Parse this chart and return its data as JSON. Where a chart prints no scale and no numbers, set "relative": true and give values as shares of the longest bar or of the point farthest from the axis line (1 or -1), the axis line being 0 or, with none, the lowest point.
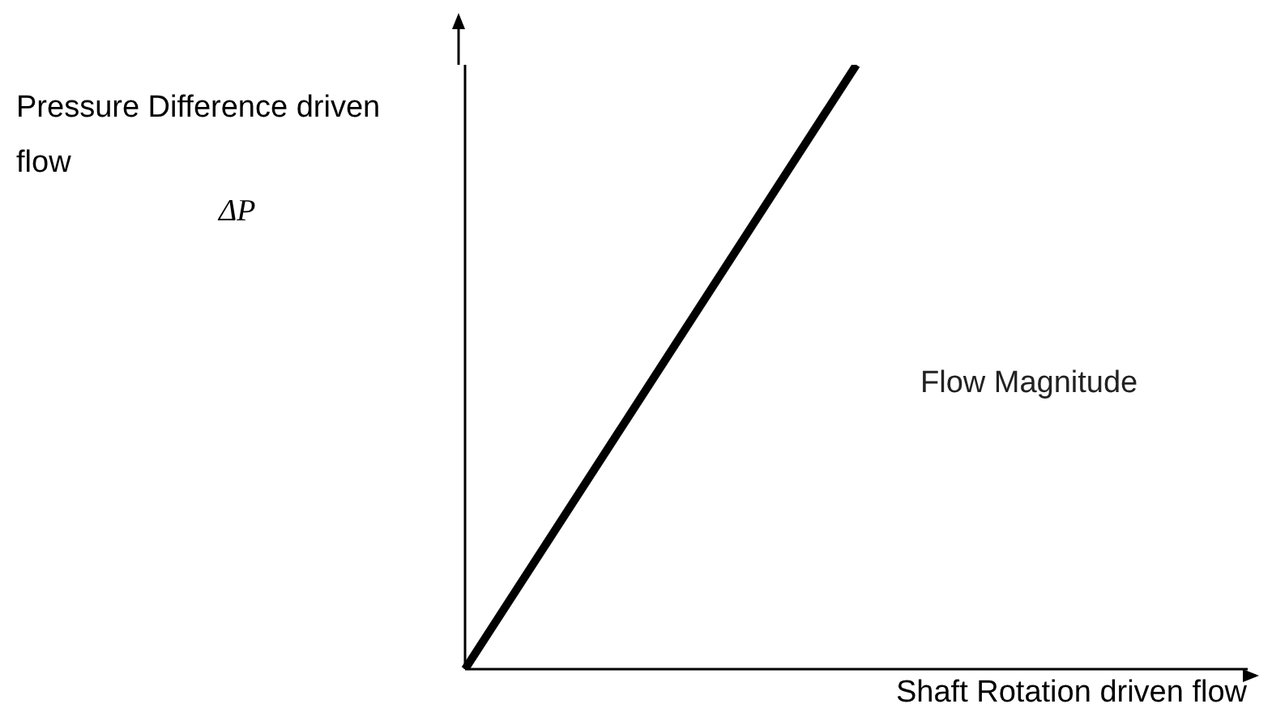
{
  "chart_data": {
    "type": "line",
    "relative": true,
    "xlabel": "Shaft Rotation driven flow",
    "ylabel": "Pressure Difference driven flow",
    "annotations": [
      "ΔP"
    ],
    "categories": [
      null,
      null,
      null
    ],
    "series": [
      {
        "name": "Flow Magnitude",
        "color": "#000000",
        "values": [
          0,
          1,
          null
        ]
      }
    ],
    "grid": false,
    "legend": false,
    "marker": "none",
    "line_style": "solid"
  }
}
